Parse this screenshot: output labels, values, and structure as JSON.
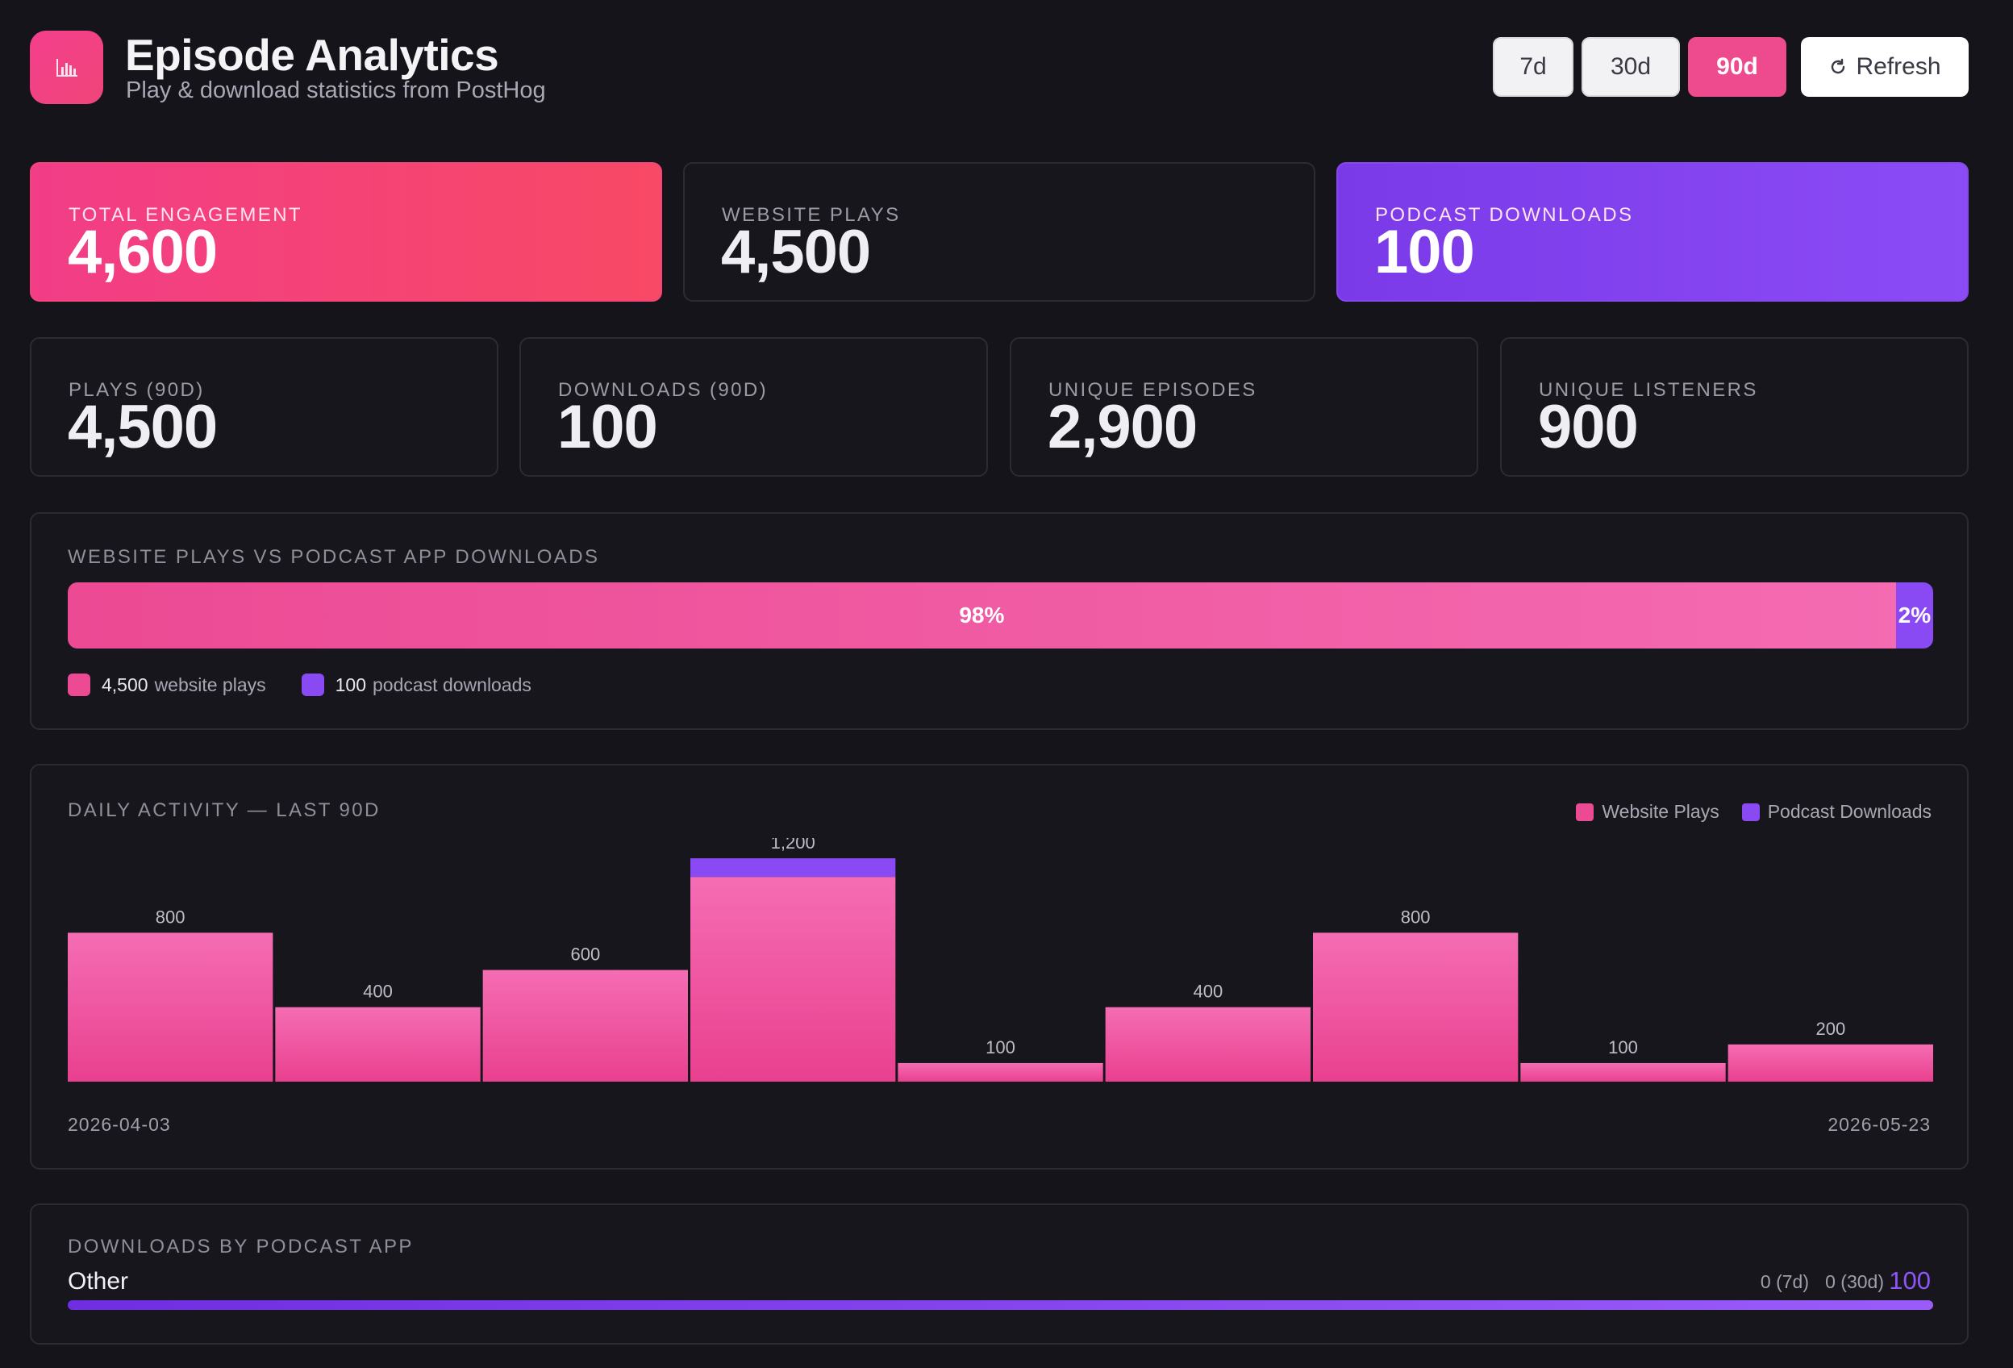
{
  "header": {
    "title": "Episode Analytics",
    "subtitle": "Play & download statistics from PostHog",
    "logo_icon": "bar-chart-icon",
    "ranges": [
      "7d",
      "30d",
      "90d"
    ],
    "selected_range": "90d",
    "refresh_label": "Refresh",
    "refresh_icon": "refresh-icon"
  },
  "hero": [
    {
      "label": "TOTAL ENGAGEMENT",
      "value": "4,600"
    },
    {
      "label": "WEBSITE PLAYS",
      "value": "4,500"
    },
    {
      "label": "PODCAST DOWNLOADS",
      "value": "100"
    }
  ],
  "stats": [
    {
      "label": "PLAYS (90D)",
      "value": "4,500"
    },
    {
      "label": "DOWNLOADS (90D)",
      "value": "100"
    },
    {
      "label": "UNIQUE EPISODES",
      "value": "2,900"
    },
    {
      "label": "UNIQUE LISTENERS",
      "value": "900"
    }
  ],
  "split": {
    "title": "WEBSITE PLAYS VS PODCAST APP DOWNLOADS",
    "plays_pct": "98%",
    "downloads_pct": "2%",
    "plays_fraction": 0.98,
    "downloads_fraction": 0.02,
    "plays_count": "4,500",
    "plays_text": "website plays",
    "downloads_count": "100",
    "downloads_text": "podcast downloads"
  },
  "colors": {
    "accent_pink": "#ec4a93",
    "accent_purple": "#8a4af3",
    "background": "#15141b"
  },
  "chart_data": {
    "type": "bar",
    "title": "DAILY ACTIVITY — LAST 90D",
    "stacked": true,
    "legend": [
      "Website Plays",
      "Podcast Downloads"
    ],
    "legend_position": "top-right",
    "x_start_label": "2026-04-03",
    "x_end_label": "2026-05-23",
    "series": [
      {
        "name": "Website Plays",
        "values": [
          800,
          400,
          600,
          1100,
          100,
          400,
          800,
          100,
          200
        ]
      },
      {
        "name": "Podcast Downloads",
        "values": [
          0,
          0,
          0,
          100,
          0,
          0,
          0,
          0,
          0
        ]
      }
    ],
    "totals": [
      "800",
      "400",
      "600",
      "1,200",
      "100",
      "400",
      "800",
      "100",
      "200"
    ],
    "ylim": [
      0,
      1300
    ],
    "grid": false
  },
  "apps": {
    "title": "DOWNLOADS BY PODCAST APP",
    "rows": [
      {
        "name": "Other",
        "d7": "0 (7d)",
        "d30": "0 (30d)",
        "total": "100",
        "fraction": 1.0
      }
    ]
  }
}
